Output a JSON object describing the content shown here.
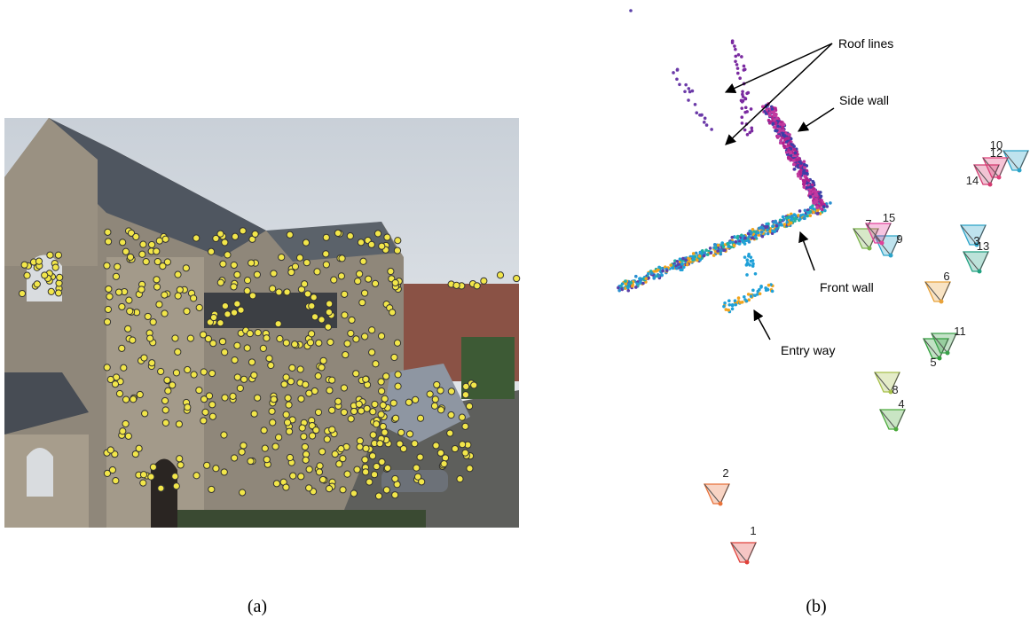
{
  "figure": {
    "panels": [
      {
        "label": "(a)"
      },
      {
        "label": "(b)",
        "annotations": [
          "Roof lines",
          "Side wall",
          "Front wall",
          "Entry way"
        ],
        "cameras": [
          "1",
          "2",
          "3",
          "4",
          "5",
          "6",
          "7",
          "8",
          "9",
          "10",
          "11",
          "12",
          "13",
          "14",
          "15"
        ]
      }
    ]
  }
}
